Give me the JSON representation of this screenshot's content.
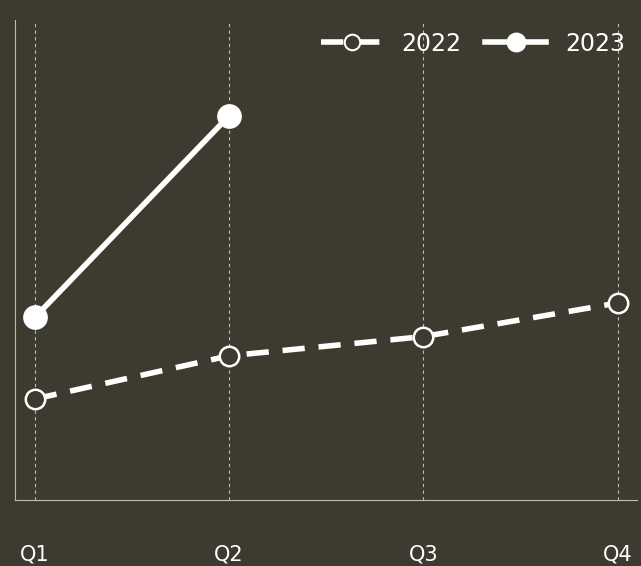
{
  "chart_data": {
    "type": "line",
    "categories": [
      "Q1",
      "Q2",
      "Q3",
      "Q4"
    ],
    "series": [
      {
        "name": "2022",
        "color": "#ffffff",
        "line_style": "dashed",
        "marker": "open_circle",
        "values": [
          21,
          30,
          34,
          41
        ]
      },
      {
        "name": "2023",
        "color": "#ffffff",
        "line_style": "solid",
        "marker": "circle",
        "values": [
          38,
          80,
          null,
          null
        ]
      }
    ],
    "ylim": [
      0,
      100
    ],
    "yticks": [],
    "grid": true,
    "legend": "upper right",
    "tick_labels": "x"
  }
}
